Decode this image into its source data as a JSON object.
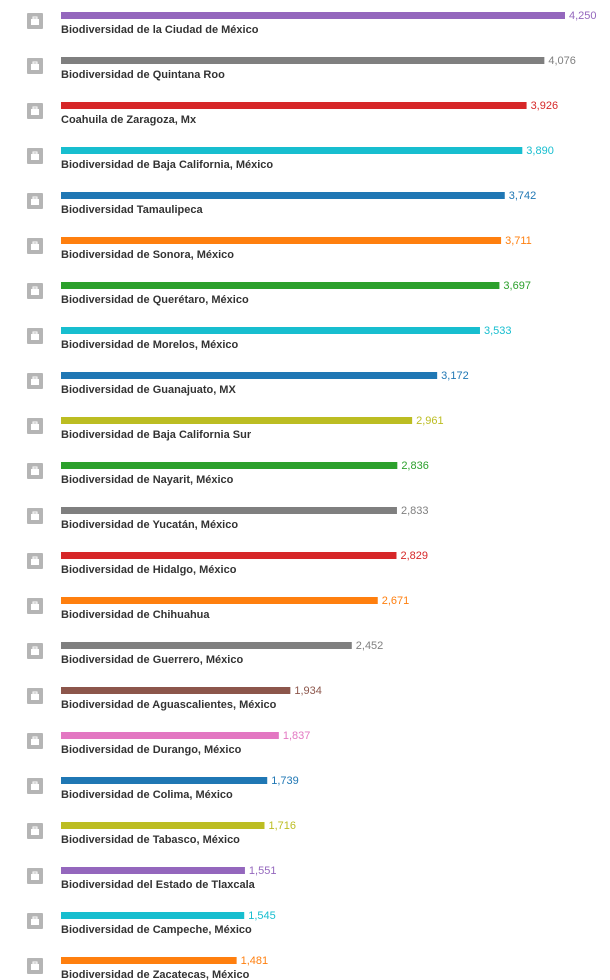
{
  "chart_data": {
    "type": "bar",
    "orientation": "horizontal",
    "categories": [
      "Biodiversidad de la Ciudad de México",
      "Biodiversidad de Quintana Roo",
      "Coahuila de Zaragoza, Mx",
      "Biodiversidad de Baja California, México",
      "Biodiversidad Tamaulipeca",
      "Biodiversidad de Sonora, México",
      "Biodiversidad de Querétaro, México",
      "Biodiversidad de Morelos, México",
      "Biodiversidad de Guanajuato, MX",
      "Biodiversidad de Baja California Sur",
      "Biodiversidad de Nayarit, México",
      "Biodiversidad de Yucatán, México",
      "Biodiversidad de Hidalgo, México",
      "Biodiversidad de Chihuahua",
      "Biodiversidad de Guerrero, México",
      "Biodiversidad de Aguascalientes, México",
      "Biodiversidad de Durango, México",
      "Biodiversidad de Colima, México",
      "Biodiversidad de Tabasco, México",
      "Biodiversidad del Estado de Tlaxcala",
      "Biodiversidad de Campeche, México",
      "Biodiversidad de Zacatecas, México"
    ],
    "values": [
      4250,
      4076,
      3926,
      3890,
      3742,
      3711,
      3697,
      3533,
      3172,
      2961,
      2836,
      2833,
      2829,
      2671,
      2452,
      1934,
      1837,
      1739,
      1716,
      1551,
      1545,
      1481
    ],
    "value_labels": [
      "4,250",
      "4,076",
      "3,926",
      "3,890",
      "3,742",
      "3,711",
      "3,697",
      "3,533",
      "3,172",
      "2,961",
      "2,836",
      "2,833",
      "2,829",
      "2,671",
      "2,452",
      "1,934",
      "1,837",
      "1,739",
      "1,716",
      "1,551",
      "1,545",
      "1,481"
    ],
    "colors": [
      "#9467bd",
      "#7f7f7f",
      "#d62728",
      "#17becf",
      "#1f77b4",
      "#ff7f0e",
      "#2ca02c",
      "#17becf",
      "#1f77b4",
      "#bcbd22",
      "#2ca02c",
      "#7f7f7f",
      "#d62728",
      "#ff7f0e",
      "#7f7f7f",
      "#8c564b",
      "#e377c2",
      "#1f77b4",
      "#bcbd22",
      "#9467bd",
      "#17becf",
      "#ff7f0e"
    ]
  }
}
